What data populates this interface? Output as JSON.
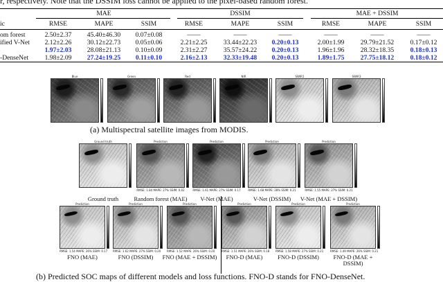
{
  "intro_text": "r, respectively. Note that the DSSIM loss cannot be applied to the pixel-based random forest.",
  "table": {
    "groups": [
      "MAE",
      "DSSIM",
      "MAE + DSSIM"
    ],
    "corner": "ic",
    "subheaders": [
      "RMSE",
      "MAPE",
      "SSIM",
      "RMSE",
      "MAPE",
      "SSIM",
      "RMSE",
      "MAPE",
      "SSIM"
    ],
    "rows": [
      {
        "name": "om forest",
        "cells": [
          {
            "t": "2.50±2.37"
          },
          {
            "t": "45.40±46.30"
          },
          {
            "t": "0.07±0.08"
          },
          {
            "t": "——"
          },
          {
            "t": "——"
          },
          {
            "t": "——"
          },
          {
            "t": "——"
          },
          {
            "t": "——"
          },
          {
            "t": "——"
          }
        ]
      },
      {
        "name": "ified V-Net",
        "cells": [
          {
            "t": "2.12±2.26"
          },
          {
            "t": "30.12±22.73"
          },
          {
            "t": "0.05±0.06"
          },
          {
            "t": "2.21±2.25"
          },
          {
            "t": "33.44±22.23"
          },
          {
            "t": "0.20±0.13",
            "b": true
          },
          {
            "t": "2.00±1.99"
          },
          {
            "t": "29.79±21.52"
          },
          {
            "t": "0.17±0.12"
          }
        ]
      },
      {
        "name": "",
        "cells": [
          {
            "t": "1.97±2.03",
            "b": true
          },
          {
            "t": "28.08±21.13"
          },
          {
            "t": "0.10±0.09"
          },
          {
            "t": "2.31±2.27"
          },
          {
            "t": "35.57±24.22"
          },
          {
            "t": "0.20±0.13",
            "b": true
          },
          {
            "t": "1.96±1.96"
          },
          {
            "t": "28.32±18.35"
          },
          {
            "t": "0.18±0.13",
            "b": true
          }
        ]
      },
      {
        "name": "-DenseNet",
        "cells": [
          {
            "t": "1.98±2.09"
          },
          {
            "t": "27.24±19.25",
            "b": true
          },
          {
            "t": "0.11±0.10",
            "b": true
          },
          {
            "t": "2.16±2.13",
            "b": true
          },
          {
            "t": "32.33±19.48",
            "b": true
          },
          {
            "t": "0.20±0.13",
            "b": true
          },
          {
            "t": "1.89±1.75",
            "b": true
          },
          {
            "t": "27.75±18.12",
            "b": true
          },
          {
            "t": "0.18±0.12",
            "b": true
          }
        ]
      }
    ]
  },
  "sat_titles": [
    "Blue",
    "Green",
    "Red",
    "NIR",
    "SWIR1",
    "SWIR3"
  ],
  "caption_a": "(a) Multispectral satellite images from MODIS.",
  "pred_top": {
    "titles": [
      "Ground truth",
      "Prediction",
      "Prediction",
      "Prediction",
      "Prediction"
    ],
    "labels": [
      "Ground truth",
      "Random forest (MAE)",
      "V-Net (MAE)",
      "V-Net (DSSIM)",
      "V-Net (MAE + DSSIM)"
    ],
    "metrics": [
      "",
      "RMSE: 1.84   MAPE: 27%   SSIM: 0.02",
      "RMSE: 1.61   MAPE: 27%   SSIM: 0.17",
      "RMSE: 1.68   MAPE: 28%   SSIM: 0.21",
      "RMSE: 1.55   MAPE: 27%   SSIM: 0.21"
    ]
  },
  "pred_bottom": {
    "titles": [
      "Prediction",
      "Prediction",
      "Prediction",
      "Prediction",
      "Prediction",
      "Prediction"
    ],
    "labels": [
      "FNO (MAE)",
      "FNO (DSSIM)",
      "FNO (MAE + DSSIM)",
      "FNO-D (MAE)",
      "FNO-D (DSSIM)",
      "FNO-D (MAE +\nDSSIM)"
    ],
    "metrics": [
      "RMSE: 1.54   MAPE: 26%   SSIM: 0.17",
      "RMSE: 1.62   MAPE: 27%   SSIM: 0.20",
      "RMSE: 1.52   MAPE: 26%   SSIM: 0.20",
      "RMSE: 1.51   MAPE: 26%   SSIM: 0.18",
      "RMSE: 1.58   MAPE: 27%   SSIM: 0.21",
      "RMSE: 1.49   MAPE: 26%   SSIM: 0.21"
    ]
  },
  "caption_b": "(b) Predicted SOC maps of different models and loss functions. FNO-D stands for FNO-DenseNet."
}
